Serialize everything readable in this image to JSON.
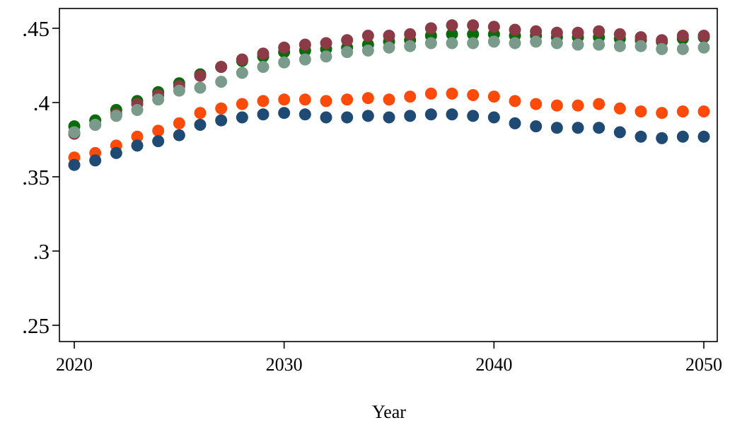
{
  "chart_data": {
    "type": "scatter",
    "title": "",
    "xlabel": "Year",
    "ylabel": "",
    "xlim": [
      2020,
      2050
    ],
    "ylim": [
      0.25,
      0.45
    ],
    "x_ticks": [
      2020,
      2030,
      2040,
      2050
    ],
    "x_tick_labels": [
      "2020",
      "2030",
      "2040",
      "2050"
    ],
    "y_ticks": [
      0.25,
      0.3,
      0.35,
      0.4,
      0.45
    ],
    "y_tick_labels": [
      ".25",
      ".3",
      ".35",
      ".4",
      ".45"
    ],
    "grid": false,
    "legend": "none",
    "x": [
      2020,
      2021,
      2022,
      2023,
      2024,
      2025,
      2026,
      2027,
      2028,
      2029,
      2030,
      2031,
      2032,
      2033,
      2034,
      2035,
      2036,
      2037,
      2038,
      2039,
      2040,
      2041,
      2042,
      2043,
      2044,
      2045,
      2046,
      2047,
      2048,
      2049,
      2050
    ],
    "series": [
      {
        "color": "#0b6b0b",
        "values": [
          0.384,
          0.388,
          0.395,
          0.401,
          0.407,
          0.413,
          0.419,
          0.424,
          0.428,
          0.431,
          0.434,
          0.435,
          0.436,
          0.437,
          0.439,
          0.441,
          0.442,
          0.445,
          0.446,
          0.446,
          0.446,
          0.445,
          0.445,
          0.444,
          0.444,
          0.444,
          0.443,
          0.442,
          0.441,
          0.443,
          0.444
        ]
      },
      {
        "color": "#8c3b46",
        "values": [
          0.379,
          0.385,
          0.392,
          0.399,
          0.405,
          0.411,
          0.418,
          0.424,
          0.429,
          0.433,
          0.437,
          0.439,
          0.44,
          0.442,
          0.445,
          0.445,
          0.446,
          0.45,
          0.452,
          0.452,
          0.451,
          0.449,
          0.448,
          0.447,
          0.447,
          0.448,
          0.446,
          0.444,
          0.442,
          0.445,
          0.445
        ]
      },
      {
        "color": "#7a9a8c",
        "values": [
          0.38,
          0.385,
          0.391,
          0.395,
          0.402,
          0.408,
          0.41,
          0.414,
          0.42,
          0.424,
          0.427,
          0.429,
          0.431,
          0.434,
          0.435,
          0.437,
          0.438,
          0.44,
          0.44,
          0.44,
          0.441,
          0.44,
          0.441,
          0.44,
          0.439,
          0.439,
          0.438,
          0.438,
          0.436,
          0.436,
          0.437
        ]
      },
      {
        "color": "#ff4a0a",
        "values": [
          0.363,
          0.366,
          0.371,
          0.377,
          0.381,
          0.386,
          0.393,
          0.396,
          0.399,
          0.401,
          0.402,
          0.402,
          0.401,
          0.402,
          0.403,
          0.402,
          0.404,
          0.406,
          0.406,
          0.405,
          0.404,
          0.401,
          0.399,
          0.398,
          0.398,
          0.399,
          0.396,
          0.394,
          0.393,
          0.394,
          0.394
        ]
      },
      {
        "color": "#1e4a73",
        "values": [
          0.358,
          0.361,
          0.366,
          0.371,
          0.374,
          0.378,
          0.385,
          0.388,
          0.39,
          0.392,
          0.393,
          0.392,
          0.39,
          0.39,
          0.391,
          0.39,
          0.391,
          0.392,
          0.392,
          0.391,
          0.39,
          0.386,
          0.384,
          0.383,
          0.383,
          0.383,
          0.38,
          0.377,
          0.376,
          0.377,
          0.377
        ]
      }
    ]
  }
}
